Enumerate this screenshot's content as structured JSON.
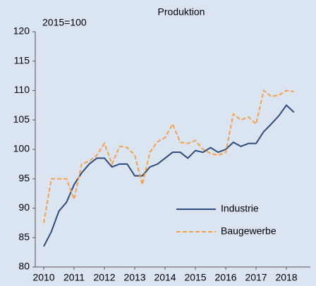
{
  "chart_data": {
    "type": "line",
    "title": "Produktion",
    "annotation": "2015=100",
    "x": [
      2010.0,
      2010.25,
      2010.5,
      2010.75,
      2011.0,
      2011.25,
      2011.5,
      2011.75,
      2012.0,
      2012.25,
      2012.5,
      2012.75,
      2013.0,
      2013.25,
      2013.5,
      2013.75,
      2014.0,
      2014.25,
      2014.5,
      2014.75,
      2015.0,
      2015.25,
      2015.5,
      2015.75,
      2016.0,
      2016.25,
      2016.5,
      2016.75,
      2017.0,
      2017.25,
      2017.5,
      2017.75,
      2018.0,
      2018.25
    ],
    "series": [
      {
        "name": "Industrie",
        "color": "#2e4a7a",
        "dashed": false,
        "values": [
          83.5,
          86,
          89.5,
          91,
          94,
          96,
          97.5,
          98.5,
          98.5,
          97,
          97.5,
          97.5,
          95.5,
          95.5,
          97,
          97.5,
          98.5,
          99.5,
          99.5,
          98.5,
          99.8,
          99.5,
          100.3,
          99.5,
          100,
          101.2,
          100.5,
          101,
          101,
          103,
          104.3,
          105.7,
          107.5,
          106.3
        ]
      },
      {
        "name": "Baugewerbe",
        "color": "#f5a04a",
        "dashed": true,
        "values": [
          87.5,
          95,
          95,
          95,
          91.5,
          97.5,
          98,
          99,
          101,
          97.5,
          100.5,
          100.3,
          99,
          94,
          99.5,
          101.3,
          102,
          104.3,
          101.2,
          101,
          101.5,
          100,
          99.3,
          99,
          99.5,
          106,
          105,
          105.5,
          104.3,
          110,
          109,
          109.2,
          110,
          109.8
        ]
      }
    ],
    "xlim": [
      2009.72,
      2018.79
    ],
    "xticks": [
      2010,
      2011,
      2012,
      2013,
      2014,
      2015,
      2016,
      2017,
      2018
    ],
    "ylim": [
      80,
      120
    ],
    "yticks": [
      80,
      85,
      90,
      95,
      100,
      105,
      110,
      115,
      120
    ],
    "grid": false
  }
}
